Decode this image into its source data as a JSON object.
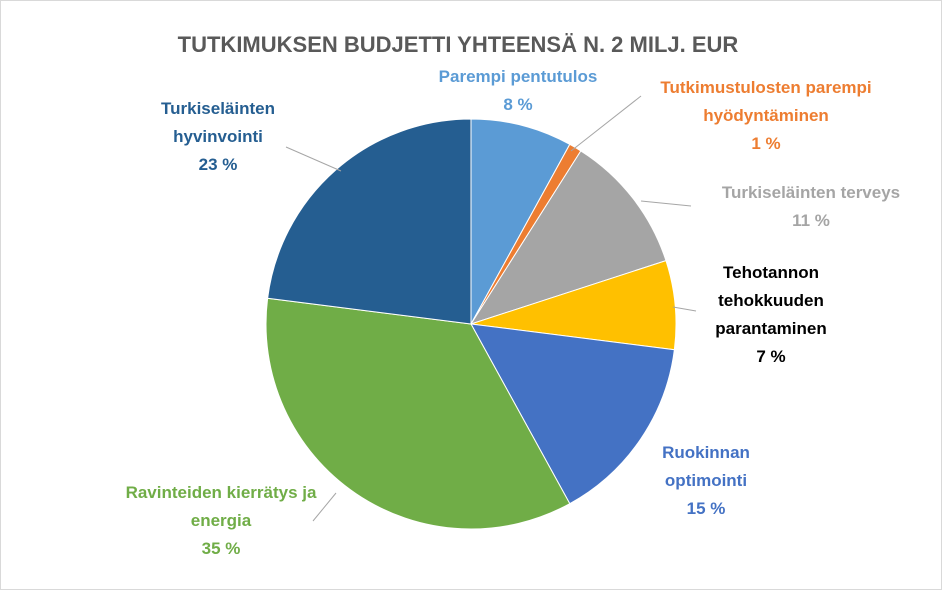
{
  "chart_data": {
    "type": "pie",
    "title": "TUTKIMUKSEN BUDJETTI YHTEENSÄ N. 2 MILJ. EUR",
    "categories": [
      "Parempi pentutulos",
      "Tutkimustulosten parempi hyödyntäminen",
      "Turkiseläinten terveys",
      "Tehotannon tehokkuuden parantaminen",
      "Ruokinnan optimointi",
      "Ravinteiden kierrätys ja energia",
      "Turkiseläinten hyvinvointi"
    ],
    "values": [
      8,
      1,
      11,
      7,
      15,
      35,
      23
    ],
    "value_labels": [
      "8 %",
      "1 %",
      "11 %",
      "7 %",
      "15 %",
      "35 %",
      "23 %"
    ],
    "colors": [
      "#5b9bd5",
      "#ed7d31",
      "#a5a5a5",
      "#ffc000",
      "#4472c4",
      "#70ad47",
      "#255e91"
    ],
    "label_colors": [
      "#5b9bd5",
      "#ed7d31",
      "#a5a5a5",
      "#000000",
      "#4472c4",
      "#70ad47",
      "#255e91"
    ]
  }
}
